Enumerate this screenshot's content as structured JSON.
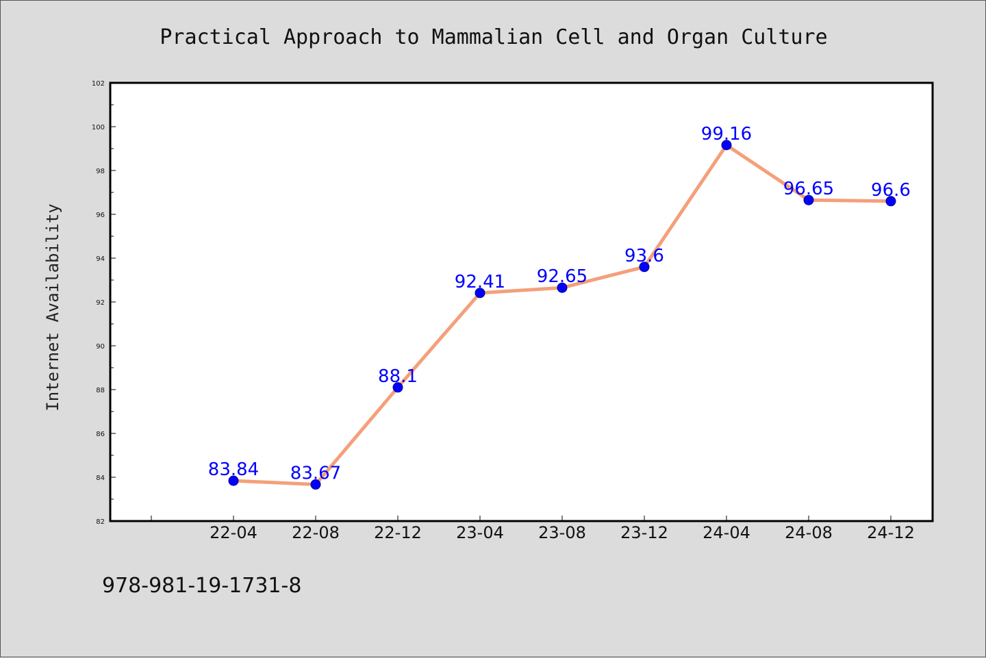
{
  "chart_data": {
    "type": "line",
    "title": "Practical Approach to Mammalian Cell and Organ Culture",
    "xlabel": "",
    "ylabel": "Internet Availability",
    "categories": [
      "22-04",
      "22-08",
      "22-12",
      "23-04",
      "23-08",
      "23-12",
      "24-04",
      "24-08",
      "24-12"
    ],
    "values": [
      83.84,
      83.67,
      88.1,
      92.41,
      92.65,
      93.6,
      99.16,
      96.65,
      96.6
    ],
    "data_labels": [
      "83.84",
      "83.67",
      "88.1",
      "92.41",
      "92.65",
      "93.6",
      "99.16",
      "96.65",
      "96.6"
    ],
    "ylim": [
      82,
      102
    ],
    "yticks": [
      82,
      84,
      86,
      88,
      90,
      92,
      94,
      96,
      98,
      100,
      102
    ],
    "grid": false,
    "legend": "none",
    "colors": {
      "line": "#f4a07a",
      "marker": "#0000ff",
      "label": "#0000ff"
    }
  },
  "footnote": "978-981-19-1731-8"
}
